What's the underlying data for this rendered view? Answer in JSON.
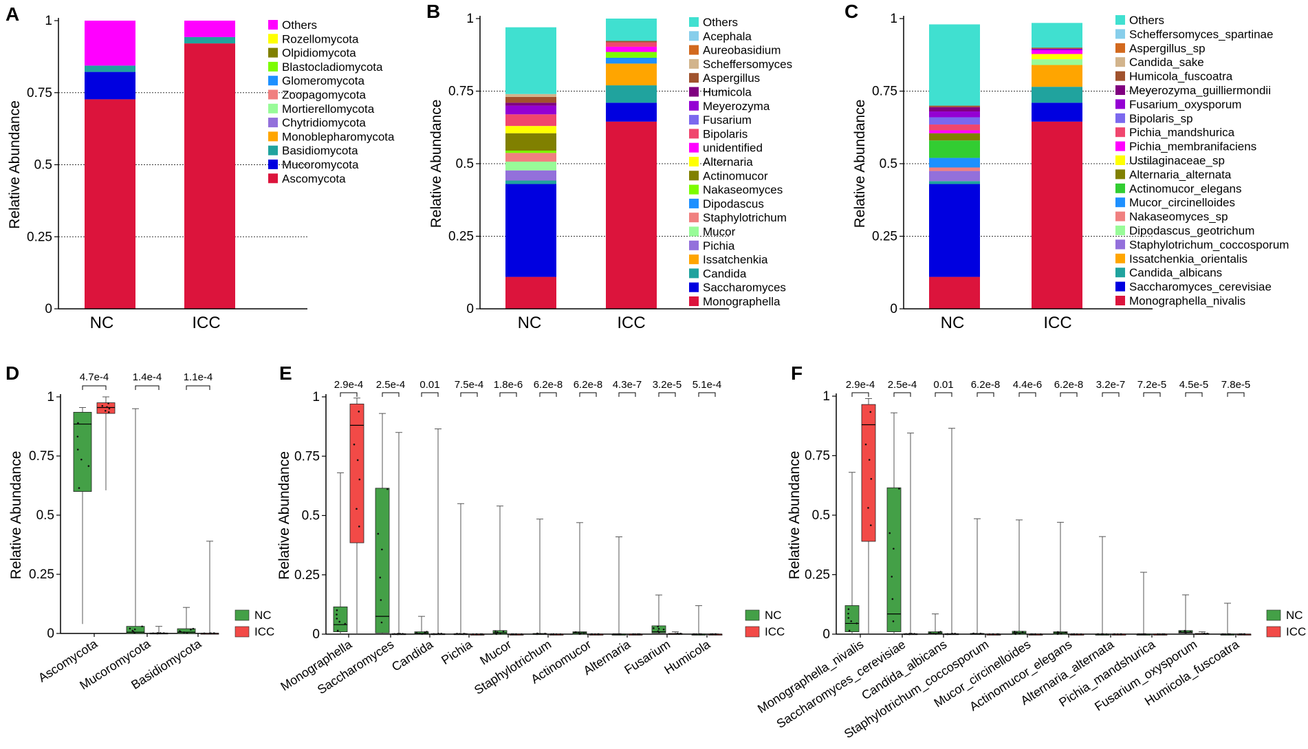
{
  "figure": {
    "panels": [
      "A",
      "B",
      "C",
      "D",
      "E",
      "F"
    ],
    "y_axis_label": "Relative Abundance",
    "group_colors": {
      "NC": "#44a047",
      "ICC": "#f24a47"
    }
  },
  "chart_data": [
    {
      "id": "A",
      "type": "bar",
      "stacked": true,
      "title": "",
      "xlabel": "",
      "ylabel": "Relative Abundance",
      "ylim": [
        0,
        1
      ],
      "yticks": [
        "0",
        "0.25",
        "0.5",
        "0.75",
        "1"
      ],
      "categories": [
        "NC",
        "ICC"
      ],
      "series": [
        {
          "name": "Ascomycota",
          "color": "#dc143c",
          "values": [
            0.727,
            0.921
          ]
        },
        {
          "name": "Mucoromycota",
          "color": "#0000e0",
          "values": [
            0.095,
            0.0
          ]
        },
        {
          "name": "Basidiomycota",
          "color": "#20a39e",
          "values": [
            0.022,
            0.022
          ]
        },
        {
          "name": "Monoblepharomycota",
          "color": "#ffa500",
          "values": [
            0.0,
            0.0
          ]
        },
        {
          "name": "Chytridiomycota",
          "color": "#9370db",
          "values": [
            0.0,
            0.0
          ]
        },
        {
          "name": "Mortierellomycota",
          "color": "#98fb98",
          "values": [
            0.0,
            0.0
          ]
        },
        {
          "name": "Zoopagomycota",
          "color": "#f08080",
          "values": [
            0.0,
            0.0
          ]
        },
        {
          "name": "Glomeromycota",
          "color": "#1e90ff",
          "values": [
            0.0,
            0.0
          ]
        },
        {
          "name": "Blastocladiomycota",
          "color": "#7cfc00",
          "values": [
            0.0,
            0.0
          ]
        },
        {
          "name": "Olpidiomycota",
          "color": "#808000",
          "values": [
            0.0,
            0.0
          ]
        },
        {
          "name": "Rozellomycota",
          "color": "#ffff00",
          "values": [
            0.0,
            0.0
          ]
        },
        {
          "name": "Others",
          "color": "#ff00ff",
          "values": [
            0.156,
            0.057
          ]
        }
      ]
    },
    {
      "id": "B",
      "type": "bar",
      "stacked": true,
      "title": "",
      "xlabel": "",
      "ylabel": "Relative Abundance",
      "ylim": [
        0,
        1
      ],
      "yticks": [
        "0",
        "0.25",
        "0.5",
        "0.75",
        "1"
      ],
      "categories": [
        "NC",
        "ICC"
      ],
      "series": [
        {
          "name": "Monographella",
          "color": "#dc143c",
          "values": [
            0.11,
            0.645
          ]
        },
        {
          "name": "Saccharomyces",
          "color": "#0000e0",
          "values": [
            0.32,
            0.065
          ]
        },
        {
          "name": "Candida",
          "color": "#20a39e",
          "values": [
            0.012,
            0.06
          ]
        },
        {
          "name": "Issatchenkia",
          "color": "#ffa500",
          "values": [
            0.0,
            0.075
          ]
        },
        {
          "name": "Pichia",
          "color": "#9370db",
          "values": [
            0.035,
            0.0
          ]
        },
        {
          "name": "Mucor",
          "color": "#98fb98",
          "values": [
            0.03,
            0.0
          ]
        },
        {
          "name": "Staphylotrichum",
          "color": "#f08080",
          "values": [
            0.03,
            0.0
          ]
        },
        {
          "name": "Dipodascus",
          "color": "#1e90ff",
          "values": [
            0.0,
            0.02
          ]
        },
        {
          "name": "Nakaseomyces",
          "color": "#7cfc00",
          "values": [
            0.008,
            0.02
          ]
        },
        {
          "name": "Actinomucor",
          "color": "#808000",
          "values": [
            0.06,
            0.0
          ]
        },
        {
          "name": "Alternaria",
          "color": "#ffff00",
          "values": [
            0.025,
            0.0
          ]
        },
        {
          "name": "unidentified",
          "color": "#ff00ff",
          "values": [
            0.0,
            0.018
          ]
        },
        {
          "name": "Bipolaris",
          "color": "#f0466e",
          "values": [
            0.04,
            0.015
          ]
        },
        {
          "name": "Fusarium",
          "color": "#7b68ee",
          "values": [
            0.0,
            0.0
          ]
        },
        {
          "name": "Meyerozyma",
          "color": "#9400d3",
          "values": [
            0.03,
            0.0
          ]
        },
        {
          "name": "Humicola",
          "color": "#800080",
          "values": [
            0.01,
            0.0
          ]
        },
        {
          "name": "Aspergillus",
          "color": "#a0522d",
          "values": [
            0.02,
            0.005
          ]
        },
        {
          "name": "Scheffersomyces",
          "color": "#d2b48c",
          "values": [
            0.01,
            0.0
          ]
        },
        {
          "name": "Aureobasidium",
          "color": "#d2691e",
          "values": [
            0.0,
            0.0
          ]
        },
        {
          "name": "Acephala",
          "color": "#87ceeb",
          "values": [
            0.0,
            0.0
          ]
        },
        {
          "name": "Others",
          "color": "#40e0d0",
          "values": [
            0.23,
            0.077
          ]
        }
      ]
    },
    {
      "id": "C",
      "type": "bar",
      "stacked": true,
      "title": "",
      "xlabel": "",
      "ylabel": "Relative Abundance",
      "ylim": [
        0,
        1
      ],
      "yticks": [
        "0",
        "0.25",
        "0.5",
        "0.75",
        "1"
      ],
      "categories": [
        "NC",
        "ICC"
      ],
      "series": [
        {
          "name": "Monographella_nivalis",
          "color": "#dc143c",
          "values": [
            0.11,
            0.645
          ]
        },
        {
          "name": "Saccharomyces_cerevisiae",
          "color": "#0000e0",
          "values": [
            0.32,
            0.065
          ]
        },
        {
          "name": "Candida_albicans",
          "color": "#20a39e",
          "values": [
            0.01,
            0.055
          ]
        },
        {
          "name": "Issatchenkia_orientalis",
          "color": "#ffa500",
          "values": [
            0.0,
            0.075
          ]
        },
        {
          "name": "Staphylotrichum_coccosporum",
          "color": "#9370db",
          "values": [
            0.035,
            0.0
          ]
        },
        {
          "name": "Dipodascus_geotrichum",
          "color": "#98fb98",
          "values": [
            0.0,
            0.02
          ]
        },
        {
          "name": "Nakaseomyces_sp",
          "color": "#f08080",
          "values": [
            0.012,
            0.0
          ]
        },
        {
          "name": "Mucor_circinelloides",
          "color": "#1e90ff",
          "values": [
            0.033,
            0.0
          ]
        },
        {
          "name": "Actinomucor_elegans",
          "color": "#32cd32",
          "values": [
            0.06,
            0.0
          ]
        },
        {
          "name": "Alternaria_alternata",
          "color": "#808000",
          "values": [
            0.025,
            0.0
          ]
        },
        {
          "name": "Ustilaginaceae_sp",
          "color": "#ffff00",
          "values": [
            0.0,
            0.018
          ]
        },
        {
          "name": "Pichia_membranifaciens",
          "color": "#ff00ff",
          "values": [
            0.01,
            0.013
          ]
        },
        {
          "name": "Pichia_mandshurica",
          "color": "#f0466e",
          "values": [
            0.02,
            0.0
          ]
        },
        {
          "name": "Bipolaris_sp",
          "color": "#7b68ee",
          "values": [
            0.025,
            0.0
          ]
        },
        {
          "name": "Fusarium_oxysporum",
          "color": "#9400d3",
          "values": [
            0.02,
            0.005
          ]
        },
        {
          "name": "Meyerozyma_guilliermondii",
          "color": "#800080",
          "values": [
            0.015,
            0.0
          ]
        },
        {
          "name": "Humicola_fuscoatra",
          "color": "#a0522d",
          "values": [
            0.005,
            0.004
          ]
        },
        {
          "name": "Candida_sake",
          "color": "#d2b48c",
          "values": [
            0.0,
            0.0
          ]
        },
        {
          "name": "Aspergillus_sp",
          "color": "#d2691e",
          "values": [
            0.0,
            0.0
          ]
        },
        {
          "name": "Scheffersomyces_spartinae",
          "color": "#87ceeb",
          "values": [
            0.0,
            0.0
          ]
        },
        {
          "name": "Others",
          "color": "#40e0d0",
          "values": [
            0.28,
            0.085
          ]
        }
      ]
    },
    {
      "id": "D",
      "type": "box",
      "title": "",
      "xlabel": "",
      "ylabel": "Relative Abundance",
      "ylim": [
        0,
        1
      ],
      "yticks": [
        "0",
        "0.25",
        "0.5",
        "0.75",
        "1"
      ],
      "legend": [
        "NC",
        "ICC"
      ],
      "categories": [
        "Ascomycota",
        "Mucoromycota",
        "Basidiomycota"
      ],
      "pvalues": [
        "4.7e-4",
        "1.4e-4",
        "1.1e-4"
      ],
      "boxes": [
        {
          "NC": [
            0.04,
            0.6,
            0.885,
            0.935,
            0.955
          ],
          "ICC": [
            0.605,
            0.93,
            0.955,
            0.975,
            1.0
          ]
        },
        {
          "NC": [
            0.0,
            0.0,
            0.005,
            0.03,
            0.95
          ],
          "ICC": [
            0.0,
            0.0,
            0.0,
            0.002,
            0.03
          ]
        },
        {
          "NC": [
            0.0,
            0.0,
            0.005,
            0.02,
            0.11
          ],
          "ICC": [
            0.0,
            0.0,
            0.0,
            0.001,
            0.39
          ]
        }
      ]
    },
    {
      "id": "E",
      "type": "box",
      "title": "",
      "xlabel": "",
      "ylabel": "Relative Abundance",
      "ylim": [
        0,
        1
      ],
      "yticks": [
        "0",
        "0.25",
        "0.5",
        "0.75",
        "1"
      ],
      "legend": [
        "NC",
        "ICC"
      ],
      "categories": [
        "Monographella",
        "Saccharomyces",
        "Candida",
        "Pichia",
        "Mucor",
        "Staphylotrichum",
        "Actinomucor",
        "Alternaria",
        "Fusarium",
        "Humicola"
      ],
      "pvalues": [
        "2.9e-4",
        "2.5e-4",
        "0.01",
        "7.5e-4",
        "1.8e-6",
        "6.2e-8",
        "6.2e-8",
        "4.3e-7",
        "3.2e-5",
        "5.1e-4"
      ],
      "boxes": [
        {
          "NC": [
            0.0,
            0.01,
            0.04,
            0.115,
            0.68
          ],
          "ICC": [
            0.0,
            0.385,
            0.88,
            0.97,
            0.995
          ]
        },
        {
          "NC": [
            0.0,
            0.005,
            0.075,
            0.615,
            0.93
          ],
          "ICC": [
            0.0,
            0.0,
            0.0,
            0.002,
            0.85
          ]
        },
        {
          "NC": [
            0.0,
            0.0,
            0.003,
            0.01,
            0.075
          ],
          "ICC": [
            0.0,
            0.0,
            0.0,
            0.002,
            0.865
          ]
        },
        {
          "NC": [
            0.0,
            0.0,
            0.0,
            0.002,
            0.55
          ],
          "ICC": [
            0.0,
            0.0,
            0.0,
            0.0,
            0.0
          ]
        },
        {
          "NC": [
            0.0,
            0.0,
            0.005,
            0.015,
            0.54
          ],
          "ICC": [
            0.0,
            0.0,
            0.0,
            0.0,
            0.0
          ]
        },
        {
          "NC": [
            0.0,
            0.0,
            0.0,
            0.003,
            0.485
          ],
          "ICC": [
            0.0,
            0.0,
            0.0,
            0.0,
            0.0
          ]
        },
        {
          "NC": [
            0.0,
            0.0,
            0.005,
            0.01,
            0.47
          ],
          "ICC": [
            0.0,
            0.0,
            0.0,
            0.0,
            0.0
          ]
        },
        {
          "NC": [
            0.0,
            0.0,
            0.0,
            0.0,
            0.41
          ],
          "ICC": [
            0.0,
            0.0,
            0.0,
            0.0,
            0.0
          ]
        },
        {
          "NC": [
            0.0,
            0.005,
            0.01,
            0.035,
            0.165
          ],
          "ICC": [
            0.0,
            0.0,
            0.0,
            0.003,
            0.01
          ]
        },
        {
          "NC": [
            0.0,
            0.0,
            0.0,
            0.0,
            0.12
          ],
          "ICC": [
            0.0,
            0.0,
            0.0,
            0.0,
            0.0
          ]
        }
      ]
    },
    {
      "id": "F",
      "type": "box",
      "title": "",
      "xlabel": "",
      "ylabel": "Relative Abundance",
      "ylim": [
        0,
        1
      ],
      "yticks": [
        "0",
        "0.25",
        "0.5",
        "0.75",
        "1"
      ],
      "legend": [
        "NC",
        "ICC"
      ],
      "categories": [
        "Monographella_nivalis",
        "Saccharomyces_cerevisiae",
        "Candida_albicans",
        "Staphylotrichum_coccosporum",
        "Mucor_circinelloides",
        "Actinomucor_elegans",
        "Alternaria_alternata",
        "Pichia_mandshurica",
        "Fusarium_oxysporum",
        "Humicola_fuscoatra"
      ],
      "pvalues": [
        "2.9e-4",
        "2.5e-4",
        "0.01",
        "6.2e-8",
        "4.4e-6",
        "6.2e-8",
        "3.2e-7",
        "7.2e-5",
        "4.5e-5",
        "7.8e-5"
      ],
      "boxes": [
        {
          "NC": [
            0.0,
            0.01,
            0.045,
            0.12,
            0.68
          ],
          "ICC": [
            0.0,
            0.39,
            0.88,
            0.965,
            0.99
          ]
        },
        {
          "NC": [
            0.0,
            0.01,
            0.085,
            0.615,
            0.93
          ],
          "ICC": [
            0.0,
            0.0,
            0.0,
            0.002,
            0.845
          ]
        },
        {
          "NC": [
            0.0,
            0.0,
            0.003,
            0.01,
            0.085
          ],
          "ICC": [
            0.0,
            0.0,
            0.0,
            0.002,
            0.865
          ]
        },
        {
          "NC": [
            0.0,
            0.0,
            0.0,
            0.003,
            0.485
          ],
          "ICC": [
            0.0,
            0.0,
            0.0,
            0.0,
            0.0
          ]
        },
        {
          "NC": [
            0.0,
            0.0,
            0.005,
            0.012,
            0.48
          ],
          "ICC": [
            0.0,
            0.0,
            0.0,
            0.0,
            0.0
          ]
        },
        {
          "NC": [
            0.0,
            0.0,
            0.005,
            0.01,
            0.47
          ],
          "ICC": [
            0.0,
            0.0,
            0.0,
            0.0,
            0.0
          ]
        },
        {
          "NC": [
            0.0,
            0.0,
            0.0,
            0.0,
            0.41
          ],
          "ICC": [
            0.0,
            0.0,
            0.0,
            0.0,
            0.0
          ]
        },
        {
          "NC": [
            0.0,
            0.0,
            0.0,
            0.0,
            0.26
          ],
          "ICC": [
            0.0,
            0.0,
            0.0,
            0.0,
            0.0
          ]
        },
        {
          "NC": [
            0.0,
            0.005,
            0.008,
            0.015,
            0.165
          ],
          "ICC": [
            0.0,
            0.0,
            0.0,
            0.003,
            0.01
          ]
        },
        {
          "NC": [
            0.0,
            0.0,
            0.0,
            0.0,
            0.13
          ],
          "ICC": [
            0.0,
            0.0,
            0.0,
            0.0,
            0.0
          ]
        }
      ]
    }
  ]
}
